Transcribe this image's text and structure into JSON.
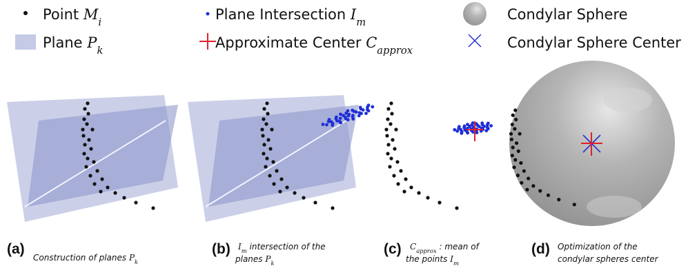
{
  "legend": [
    {
      "label": "Point",
      "symbol": "M",
      "subscript": "i"
    },
    {
      "label": "Plane",
      "symbol": "P",
      "subscript": "k"
    },
    {
      "label": "Plane Intersection",
      "symbol": "I",
      "subscript": "m"
    },
    {
      "label": "Approximate Center",
      "symbol": "C",
      "subscript": "approx"
    },
    {
      "label": "Condylar Sphere"
    },
    {
      "label": "Condylar Sphere Center"
    }
  ],
  "panels": [
    {
      "tag": "(a)",
      "caption": [
        [
          {
            "t": "Construction of planes "
          },
          {
            "s": "P",
            "sub": "k"
          }
        ]
      ]
    },
    {
      "tag": "(b)",
      "caption": [
        [
          {
            "s": "I",
            "sub": "m"
          },
          {
            "t": " intersection of the"
          }
        ],
        [
          {
            "t": "planes "
          },
          {
            "s": "P",
            "sub": "k"
          }
        ]
      ]
    },
    {
      "tag": "(c)",
      "caption": [
        [
          {
            "s": "C",
            "sub": "approx"
          },
          {
            "t": " : mean of"
          }
        ],
        [
          {
            "t": "the points "
          },
          {
            "s": "I",
            "sub": "m"
          }
        ]
      ]
    },
    {
      "tag": "(d)",
      "caption": [
        [
          {
            "t": "Optimization of the"
          }
        ],
        [
          {
            "t": "condylar spheres center"
          }
        ]
      ]
    }
  ]
}
